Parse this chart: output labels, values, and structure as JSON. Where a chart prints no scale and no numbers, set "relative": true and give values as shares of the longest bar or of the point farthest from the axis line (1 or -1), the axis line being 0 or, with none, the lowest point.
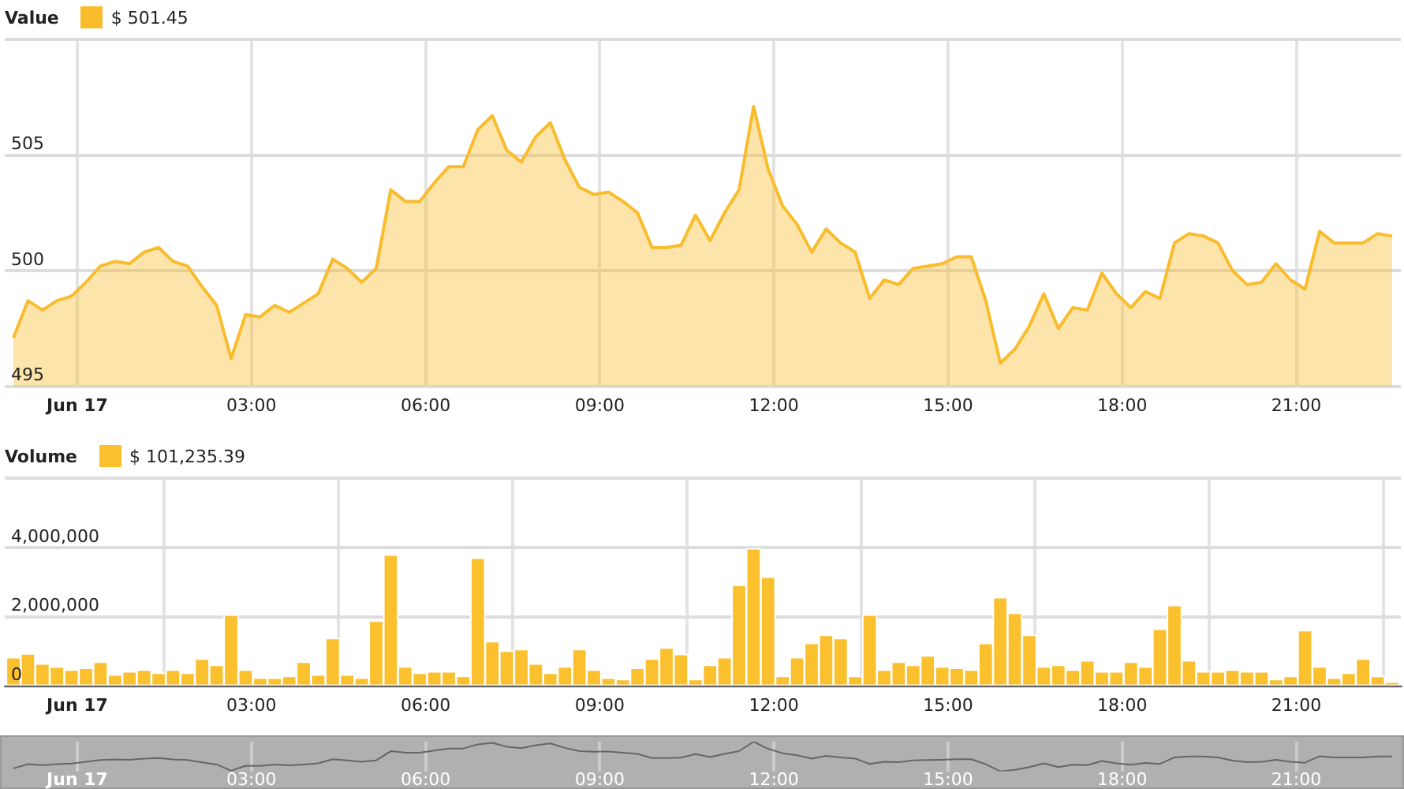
{
  "chart_data": [
    {
      "type": "area",
      "title": "Value",
      "legend": "top left",
      "grid": true,
      "marker": "none",
      "x": [
        -1.1,
        -0.85,
        -0.6,
        -0.35,
        -0.1,
        0.15,
        0.4,
        0.65,
        0.9,
        1.15,
        1.4,
        1.65,
        1.9,
        2.15,
        2.4,
        2.65,
        2.9,
        3.15,
        3.4,
        3.65,
        3.9,
        4.15,
        4.4,
        4.65,
        4.9,
        5.15,
        5.4,
        5.65,
        5.9,
        6.15,
        6.4,
        6.65,
        6.9,
        7.15,
        7.4,
        7.65,
        7.9,
        8.15,
        8.4,
        8.65,
        8.9,
        9.15,
        9.4,
        9.65,
        9.9,
        10.15,
        10.4,
        10.65,
        10.9,
        11.15,
        11.4,
        11.65,
        11.9,
        12.15,
        12.4,
        12.65,
        12.9,
        13.15,
        13.4,
        13.65,
        13.9,
        14.15,
        14.4,
        14.65,
        14.9,
        15.15,
        15.4,
        15.65,
        15.9,
        16.15,
        16.4,
        16.65,
        16.9,
        17.15,
        17.4,
        17.65,
        17.9,
        18.15,
        18.4,
        18.65,
        18.9,
        19.15,
        19.4,
        19.65,
        19.9,
        20.15,
        20.4,
        20.65,
        20.9,
        21.15,
        21.4,
        21.65,
        21.9,
        22.15,
        22.4,
        22.65
      ],
      "xlim": [
        -1.25,
        22.8
      ],
      "xticks": [
        {
          "value": 0,
          "label": "Jun 17"
        },
        {
          "value": 3,
          "label": "03:00"
        },
        {
          "value": 6,
          "label": "06:00"
        },
        {
          "value": 9,
          "label": "09:00"
        },
        {
          "value": 12,
          "label": "12:00"
        },
        {
          "value": 15,
          "label": "15:00"
        },
        {
          "value": 18,
          "label": "18:00"
        },
        {
          "value": 21,
          "label": "21:00"
        }
      ],
      "ylim": [
        495,
        510
      ],
      "yticks": [
        495,
        500,
        505,
        {
          "value": 510,
          "label": null
        }
      ],
      "series": [
        {
          "name": "$ 501.45",
          "color": "#f9bc2c",
          "values": [
            497.1,
            498.7,
            498.3,
            498.7,
            498.9,
            499.5,
            500.2,
            500.4,
            500.3,
            500.8,
            501.0,
            500.4,
            500.2,
            499.3,
            498.5,
            496.2,
            498.1,
            498.0,
            498.5,
            498.2,
            498.6,
            499.0,
            500.5,
            500.1,
            499.5,
            500.1,
            503.5,
            503.0,
            503.0,
            503.8,
            504.5,
            504.5,
            506.1,
            506.7,
            505.2,
            504.7,
            505.8,
            506.4,
            504.8,
            503.6,
            503.3,
            503.4,
            503.0,
            502.5,
            501.0,
            501.0,
            501.1,
            502.4,
            501.3,
            502.5,
            503.5,
            507.1,
            504.4,
            502.8,
            502.0,
            500.8,
            501.8,
            501.2,
            500.8,
            498.8,
            499.6,
            499.4,
            500.1,
            500.2,
            500.3,
            500.6,
            500.6,
            498.7,
            496.0,
            496.6,
            497.6,
            499.0,
            497.5,
            498.4,
            498.3,
            499.9,
            499.0,
            498.4,
            499.1,
            498.8,
            501.2,
            501.6,
            501.5,
            501.2,
            500.0,
            499.4,
            499.5,
            500.3,
            499.6,
            499.2,
            501.7,
            501.2,
            501.2,
            501.2,
            501.6,
            501.5
          ]
        }
      ]
    },
    {
      "type": "bar",
      "title": "Volume",
      "legend": "top left",
      "grid": true,
      "x": [
        -1.1,
        -0.85,
        -0.6,
        -0.35,
        -0.1,
        0.15,
        0.4,
        0.65,
        0.9,
        1.15,
        1.4,
        1.65,
        1.9,
        2.15,
        2.4,
        2.65,
        2.9,
        3.15,
        3.4,
        3.65,
        3.9,
        4.15,
        4.4,
        4.65,
        4.9,
        5.15,
        5.4,
        5.65,
        5.9,
        6.15,
        6.4,
        6.65,
        6.9,
        7.15,
        7.4,
        7.65,
        7.9,
        8.15,
        8.4,
        8.65,
        8.9,
        9.15,
        9.4,
        9.65,
        9.9,
        10.15,
        10.4,
        10.65,
        10.9,
        11.15,
        11.4,
        11.65,
        11.9,
        12.15,
        12.4,
        12.65,
        12.9,
        13.15,
        13.4,
        13.65,
        13.9,
        14.15,
        14.4,
        14.65,
        14.9,
        15.15,
        15.4,
        15.65,
        15.9,
        16.15,
        16.4,
        16.65,
        16.9,
        17.15,
        17.4,
        17.65,
        17.9,
        18.15,
        18.4,
        18.65,
        18.9,
        19.15,
        19.4,
        19.65,
        19.9,
        20.15,
        20.4,
        20.65,
        20.9,
        21.15,
        21.4,
        21.65,
        21.9,
        22.15,
        22.4,
        22.65
      ],
      "xlim": [
        -1.25,
        22.8
      ],
      "xticks": [
        {
          "value": 0,
          "label": "Jun 17"
        },
        {
          "value": 3,
          "label": "03:00"
        },
        {
          "value": 6,
          "label": "06:00"
        },
        {
          "value": 9,
          "label": "09:00"
        },
        {
          "value": 12,
          "label": "12:00"
        },
        {
          "value": 15,
          "label": "15:00"
        },
        {
          "value": 18,
          "label": "18:00"
        },
        {
          "value": 21,
          "label": "21:00"
        }
      ],
      "ylim": [
        0,
        6000000
      ],
      "yticks": [
        0,
        {
          "value": 2000000,
          "label": "2,000,000"
        },
        {
          "value": 4000000,
          "label": "4,000,000"
        },
        {
          "value": 6000000,
          "label": null
        }
      ],
      "series": [
        {
          "name": "$ 101,235.39",
          "color": "#fbc02d",
          "values": [
            830000,
            940000,
            650000,
            560000,
            470000,
            520000,
            700000,
            330000,
            420000,
            470000,
            380000,
            470000,
            380000,
            790000,
            610000,
            2060000,
            470000,
            240000,
            240000,
            290000,
            700000,
            330000,
            1380000,
            330000,
            240000,
            1880000,
            3790000,
            560000,
            380000,
            420000,
            420000,
            290000,
            3700000,
            1290000,
            1020000,
            1060000,
            650000,
            380000,
            560000,
            1060000,
            470000,
            240000,
            200000,
            520000,
            790000,
            1110000,
            920000,
            200000,
            610000,
            830000,
            2920000,
            3970000,
            3150000,
            290000,
            830000,
            1240000,
            1470000,
            1380000,
            290000,
            2060000,
            470000,
            700000,
            610000,
            880000,
            560000,
            520000,
            470000,
            1240000,
            2560000,
            2110000,
            1470000,
            560000,
            610000,
            470000,
            740000,
            420000,
            420000,
            700000,
            560000,
            1650000,
            2330000,
            740000,
            420000,
            420000,
            470000,
            420000,
            420000,
            200000,
            290000,
            1610000,
            560000,
            240000,
            380000,
            790000,
            290000,
            110000
          ]
        }
      ]
    },
    {
      "type": "line",
      "grid": "x",
      "tick_labels": "x",
      "marker": "none",
      "x": [
        -1.1,
        -0.85,
        -0.6,
        -0.35,
        -0.1,
        0.15,
        0.4,
        0.65,
        0.9,
        1.15,
        1.4,
        1.65,
        1.9,
        2.15,
        2.4,
        2.65,
        2.9,
        3.15,
        3.4,
        3.65,
        3.9,
        4.15,
        4.4,
        4.65,
        4.9,
        5.15,
        5.4,
        5.65,
        5.9,
        6.15,
        6.4,
        6.65,
        6.9,
        7.15,
        7.4,
        7.65,
        7.9,
        8.15,
        8.4,
        8.65,
        8.9,
        9.15,
        9.4,
        9.65,
        9.9,
        10.15,
        10.4,
        10.65,
        10.9,
        11.15,
        11.4,
        11.65,
        11.9,
        12.15,
        12.4,
        12.65,
        12.9,
        13.15,
        13.4,
        13.65,
        13.9,
        14.15,
        14.4,
        14.65,
        14.9,
        15.15,
        15.4,
        15.65,
        15.9,
        16.15,
        16.4,
        16.65,
        16.9,
        17.15,
        17.4,
        17.65,
        17.9,
        18.15,
        18.4,
        18.65,
        18.9,
        19.15,
        19.4,
        19.65,
        19.9,
        20.15,
        20.4,
        20.65,
        20.9,
        21.15,
        21.4,
        21.65,
        21.9,
        22.15,
        22.4,
        22.65
      ],
      "xlim": [
        -1.25,
        22.8
      ],
      "xticks": [
        {
          "value": 0,
          "label": "Jun 17"
        },
        {
          "value": 3,
          "label": "03:00"
        },
        {
          "value": 6,
          "label": "06:00"
        },
        {
          "value": 9,
          "label": "09:00"
        },
        {
          "value": 12,
          "label": "12:00"
        },
        {
          "value": 15,
          "label": "15:00"
        },
        {
          "value": 18,
          "label": "18:00"
        },
        {
          "value": 21,
          "label": "21:00"
        }
      ],
      "relative": true,
      "series": [
        {
          "color": "#666666",
          "values": [
            0.1,
            0.24,
            0.21,
            0.24,
            0.26,
            0.32,
            0.38,
            0.4,
            0.39,
            0.43,
            0.45,
            0.4,
            0.38,
            0.3,
            0.23,
            0.02,
            0.19,
            0.18,
            0.23,
            0.2,
            0.23,
            0.27,
            0.41,
            0.37,
            0.32,
            0.37,
            0.68,
            0.63,
            0.63,
            0.7,
            0.77,
            0.77,
            0.91,
            0.96,
            0.83,
            0.78,
            0.88,
            0.94,
            0.79,
            0.68,
            0.66,
            0.67,
            0.63,
            0.59,
            0.45,
            0.45,
            0.46,
            0.58,
            0.48,
            0.59,
            0.68,
            1,
            0.76,
            0.61,
            0.54,
            0.43,
            0.52,
            0.47,
            0.43,
            0.25,
            0.32,
            0.31,
            0.37,
            0.38,
            0.39,
            0.41,
            0.41,
            0.24,
            0,
            0.05,
            0.14,
            0.27,
            0.14,
            0.22,
            0.21,
            0.35,
            0.27,
            0.22,
            0.28,
            0.25,
            0.47,
            0.5,
            0.5,
            0.47,
            0.36,
            0.31,
            0.32,
            0.39,
            0.32,
            0.29,
            0.51,
            0.47,
            0.47,
            0.47,
            0.5,
            0.5
          ]
        }
      ]
    }
  ]
}
